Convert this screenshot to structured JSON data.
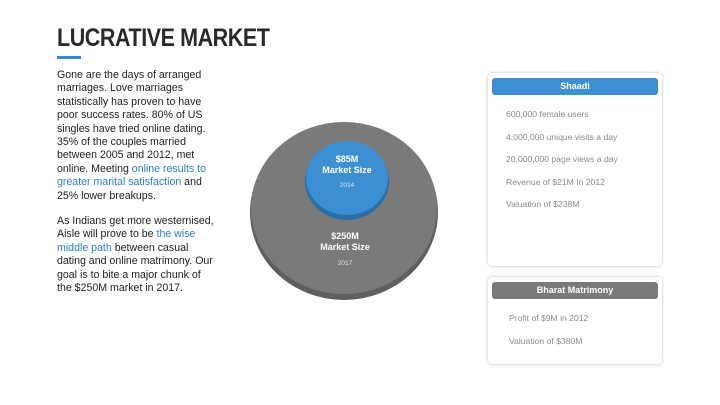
{
  "title": "LUCRATIVE MARKET",
  "intro": {
    "p1_before": "Gone are the days of arranged marriages. Love marriages statistically has proven to have poor success rates. 80% of US singles have tried online dating. 35% of the couples married between 2005 and 2012, met online. Meeting ",
    "p1_link": "online results to greater marital satisfaction",
    "p1_after": " and 25% lower breakups.",
    "p2_before": "As Indians get more westernised, Aisle will prove to be ",
    "p2_link": "the wise middle path",
    "p2_after": " between casual dating and online matrimony. Our goal is to bite a major chunk of the $250M market in 2017."
  },
  "bubbles": {
    "large": {
      "value": "$250M",
      "label": "Market Size",
      "year": "2017",
      "color": "#7a7a7a"
    },
    "small": {
      "value": "$85M",
      "label": "Market Size",
      "year": "2014",
      "color": "#3b8fd2"
    }
  },
  "cards": {
    "shaadi": {
      "title": "Shaadi",
      "header_color": "#3b8fd2",
      "items": [
        "600,000 female users",
        "4,000,000 unique visits a day",
        "20,000,000 page views a day",
        "Revenue of $21M In 2012",
        "Valuation of $238M"
      ]
    },
    "bharat": {
      "title": "Bharat Matrimony",
      "header_color": "#7a7a7a",
      "items": [
        "Profit of $9M in 2012",
        "Valuation of $380M"
      ]
    }
  }
}
